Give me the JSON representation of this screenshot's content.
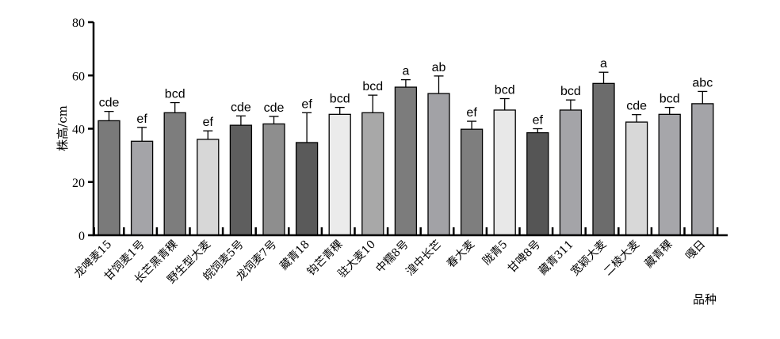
{
  "chart_data": {
    "type": "bar",
    "title": "",
    "xlabel": "品种",
    "ylabel": "株高/cm",
    "ylim": [
      0,
      80
    ],
    "yticks": [
      0,
      20,
      40,
      60,
      80
    ],
    "grid": false,
    "categories": [
      "龙啤麦15",
      "甘饲麦1号",
      "长芒黑青稞",
      "野生型大麦",
      "皖饲麦5号",
      "龙饲麦7号",
      "藏青18",
      "钩芒青稞",
      "驻大麦10",
      "中糯8号",
      "湟中长芒",
      "春大麦",
      "陇青5",
      "甘啤8号",
      "藏青311",
      "宽颖大麦",
      "二棱大麦",
      "藏青稞",
      "嘎日"
    ],
    "values": [
      43,
      35.3,
      46,
      36,
      41.3,
      41.8,
      34.8,
      45.4,
      46,
      55.6,
      53.2,
      39.8,
      47,
      38.5,
      47,
      57,
      42.5,
      45.4,
      49.4
    ],
    "errors": [
      3.5,
      5.2,
      3.8,
      3.2,
      3.5,
      2.8,
      11.2,
      2.6,
      6.6,
      2.8,
      6.6,
      3,
      4.3,
      1.5,
      3.8,
      4.2,
      2.8,
      2.6,
      4.6
    ],
    "significance": [
      "cde",
      "ef",
      "bcd",
      "ef",
      "cde",
      "cde",
      "ef",
      "bcd",
      "bcd",
      "a",
      "ab",
      "ef",
      "bcd",
      "ef",
      "bcd",
      "a",
      "cde",
      "bcd",
      "abc"
    ],
    "bar_colors": [
      "#7a7a7a",
      "#a4a4a8",
      "#7d7d7d",
      "#d7d7d7",
      "#5e5e5e",
      "#8e8e8e",
      "#5a5a5a",
      "#ebebeb",
      "#a8a8a8",
      "#7c7c7c",
      "#a2a2a6",
      "#7e7e7e",
      "#e8e8e8",
      "#555555",
      "#a4a4a8",
      "#6c6c6c",
      "#d8d8d8",
      "#a6a6aa",
      "#a4a4a8"
    ]
  }
}
